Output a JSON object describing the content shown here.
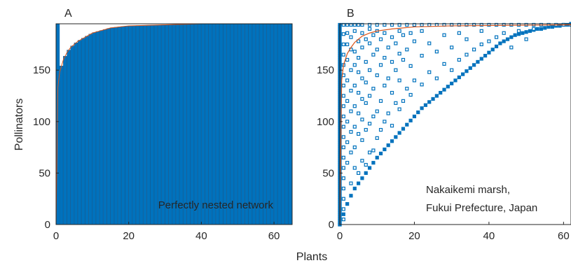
{
  "figure": {
    "shared_xlabel": "Plants",
    "shared_ylabel": "Pollinators",
    "colors": {
      "marker": "#0072bd",
      "curve": "#d95319",
      "axis": "#262626"
    }
  },
  "chart_data": [
    {
      "panel_label": "A",
      "type": "heatmap",
      "annotation": "Perfectly nested network",
      "xlabel": "Plants",
      "ylabel": "Pollinators",
      "xlim": [
        0,
        65
      ],
      "ylim": [
        0,
        195
      ],
      "xticks": [
        0,
        20,
        40,
        60
      ],
      "yticks": [
        0,
        50,
        100,
        150
      ],
      "grid": false,
      "matrix_rows": 195,
      "matrix_cols": 65,
      "nested_fill_boundary": {
        "x": [
          0,
          0.5,
          1,
          2,
          3,
          4,
          6,
          8,
          10,
          12,
          15,
          20,
          30,
          40,
          65
        ],
        "y": [
          0,
          133,
          148,
          160,
          167,
          172,
          178,
          182,
          186,
          188,
          191,
          193,
          194,
          195,
          195
        ]
      }
    },
    {
      "panel_label": "B",
      "type": "scatter",
      "annotation_lines": [
        "Nakaikemi marsh,",
        "Fukui Prefecture, Japan"
      ],
      "xlabel": "Plants",
      "ylabel": "Pollinators",
      "xlim": [
        0,
        62
      ],
      "ylim": [
        0,
        195
      ],
      "xticks": [
        0,
        20,
        40,
        60
      ],
      "yticks": [
        0,
        50,
        100,
        150
      ],
      "grid": false,
      "curve": {
        "x": [
          0,
          0.5,
          1,
          2,
          3,
          4,
          6,
          8,
          10,
          14,
          20,
          30,
          62
        ],
        "y": [
          0,
          140,
          155,
          166,
          172,
          177,
          183,
          186,
          188,
          190,
          192,
          193,
          194
        ]
      },
      "diagonal": [
        [
          0,
          0
        ],
        [
          1,
          10
        ],
        [
          2,
          20
        ],
        [
          3,
          28
        ],
        [
          4,
          35
        ],
        [
          5,
          40
        ],
        [
          6,
          45
        ],
        [
          7,
          50
        ],
        [
          8,
          55
        ],
        [
          9,
          60
        ],
        [
          10,
          65
        ],
        [
          11,
          69
        ],
        [
          12,
          73
        ],
        [
          13,
          77
        ],
        [
          14,
          81
        ],
        [
          15,
          85
        ],
        [
          16,
          89
        ],
        [
          17,
          93
        ],
        [
          18,
          97
        ],
        [
          19,
          101
        ],
        [
          20,
          105
        ],
        [
          21,
          109
        ],
        [
          22,
          113
        ],
        [
          23,
          116
        ],
        [
          24,
          119
        ],
        [
          25,
          122
        ],
        [
          26,
          125
        ],
        [
          27,
          128
        ],
        [
          28,
          131
        ],
        [
          29,
          134
        ],
        [
          30,
          137
        ],
        [
          31,
          140
        ],
        [
          32,
          143
        ],
        [
          33,
          146
        ],
        [
          34,
          149
        ],
        [
          35,
          152
        ],
        [
          36,
          155
        ],
        [
          37,
          158
        ],
        [
          38,
          161
        ],
        [
          39,
          164
        ],
        [
          40,
          167
        ],
        [
          41,
          170
        ],
        [
          42,
          173
        ],
        [
          43,
          176
        ],
        [
          44,
          178
        ],
        [
          45,
          180
        ],
        [
          46,
          182
        ],
        [
          47,
          184
        ],
        [
          48,
          185
        ],
        [
          49,
          186
        ],
        [
          50,
          187
        ],
        [
          51,
          188
        ],
        [
          52,
          189
        ],
        [
          53,
          190
        ],
        [
          54,
          190
        ],
        [
          55,
          191
        ],
        [
          56,
          192
        ],
        [
          57,
          192
        ],
        [
          58,
          193
        ],
        [
          59,
          193
        ],
        [
          60,
          194
        ],
        [
          61,
          194
        ],
        [
          62,
          195
        ]
      ],
      "top_band": [
        [
          1,
          194
        ],
        [
          2,
          194
        ],
        [
          3,
          194
        ],
        [
          4,
          194
        ],
        [
          5,
          194
        ],
        [
          6,
          194
        ],
        [
          8,
          194
        ],
        [
          10,
          194
        ],
        [
          12,
          194
        ],
        [
          14,
          194
        ],
        [
          16,
          194
        ],
        [
          18,
          194
        ],
        [
          20,
          194
        ],
        [
          22,
          194
        ],
        [
          24,
          194
        ],
        [
          26,
          194
        ],
        [
          28,
          194
        ],
        [
          30,
          194
        ],
        [
          32,
          194
        ],
        [
          34,
          194
        ],
        [
          36,
          194
        ],
        [
          38,
          194
        ],
        [
          40,
          194
        ],
        [
          42,
          194
        ],
        [
          44,
          194
        ],
        [
          46,
          194
        ],
        [
          48,
          194
        ],
        [
          50,
          194
        ],
        [
          52,
          194
        ],
        [
          54,
          194
        ],
        [
          56,
          194
        ],
        [
          58,
          194
        ],
        [
          60,
          194
        ],
        [
          62,
          194
        ]
      ],
      "scatter_extra": [
        [
          1,
          5
        ],
        [
          1,
          15
        ],
        [
          1,
          25
        ],
        [
          1,
          35
        ],
        [
          1,
          45
        ],
        [
          1,
          55
        ],
        [
          1,
          65
        ],
        [
          1,
          75
        ],
        [
          1,
          85
        ],
        [
          1,
          95
        ],
        [
          1,
          105
        ],
        [
          1,
          115
        ],
        [
          1,
          125
        ],
        [
          1,
          135
        ],
        [
          1,
          145
        ],
        [
          1,
          155
        ],
        [
          1,
          165
        ],
        [
          1,
          175
        ],
        [
          1,
          185
        ],
        [
          2,
          60
        ],
        [
          2,
          80
        ],
        [
          2,
          100
        ],
        [
          2,
          120
        ],
        [
          2,
          140
        ],
        [
          2,
          160
        ],
        [
          2,
          175
        ],
        [
          2,
          186
        ],
        [
          3,
          40
        ],
        [
          3,
          70
        ],
        [
          3,
          90
        ],
        [
          3,
          110
        ],
        [
          3,
          130
        ],
        [
          3,
          150
        ],
        [
          3,
          170
        ],
        [
          3,
          182
        ],
        [
          4,
          55
        ],
        [
          4,
          75
        ],
        [
          4,
          95
        ],
        [
          4,
          115
        ],
        [
          4,
          135
        ],
        [
          4,
          155
        ],
        [
          4,
          168
        ],
        [
          4,
          188
        ],
        [
          5,
          50
        ],
        [
          5,
          88
        ],
        [
          5,
          108
        ],
        [
          5,
          128
        ],
        [
          5,
          148
        ],
        [
          5,
          162
        ],
        [
          5,
          178
        ],
        [
          6,
          62
        ],
        [
          6,
          82
        ],
        [
          6,
          102
        ],
        [
          6,
          122
        ],
        [
          6,
          142
        ],
        [
          6,
          172
        ],
        [
          6,
          186
        ],
        [
          7,
          58
        ],
        [
          7,
          92
        ],
        [
          7,
          118
        ],
        [
          7,
          138
        ],
        [
          7,
          158
        ],
        [
          7,
          180
        ],
        [
          8,
          70
        ],
        [
          8,
          98
        ],
        [
          8,
          125
        ],
        [
          8,
          150
        ],
        [
          8,
          176
        ],
        [
          8,
          190
        ],
        [
          9,
          72
        ],
        [
          9,
          105
        ],
        [
          9,
          132
        ],
        [
          9,
          165
        ],
        [
          9,
          184
        ],
        [
          10,
          84
        ],
        [
          10,
          110
        ],
        [
          10,
          145
        ],
        [
          10,
          170
        ],
        [
          10,
          188
        ],
        [
          11,
          92
        ],
        [
          11,
          120
        ],
        [
          11,
          155
        ],
        [
          11,
          180
        ],
        [
          12,
          100
        ],
        [
          12,
          135
        ],
        [
          12,
          162
        ],
        [
          12,
          186
        ],
        [
          13,
          108
        ],
        [
          13,
          142
        ],
        [
          13,
          172
        ],
        [
          14,
          96
        ],
        [
          14,
          128
        ],
        [
          14,
          158
        ],
        [
          14,
          182
        ],
        [
          15,
          118
        ],
        [
          15,
          150
        ],
        [
          15,
          176
        ],
        [
          16,
          112
        ],
        [
          16,
          140
        ],
        [
          16,
          166
        ],
        [
          16,
          188
        ],
        [
          17,
          120
        ],
        [
          17,
          160
        ],
        [
          17,
          184
        ],
        [
          18,
          132
        ],
        [
          18,
          170
        ],
        [
          19,
          126
        ],
        [
          19,
          154
        ],
        [
          19,
          186
        ],
        [
          20,
          140
        ],
        [
          20,
          178
        ],
        [
          22,
          136
        ],
        [
          22,
          164
        ],
        [
          22,
          188
        ],
        [
          24,
          148
        ],
        [
          24,
          176
        ],
        [
          26,
          142
        ],
        [
          26,
          168
        ],
        [
          28,
          156
        ],
        [
          28,
          184
        ],
        [
          30,
          150
        ],
        [
          30,
          172
        ],
        [
          32,
          160
        ],
        [
          32,
          186
        ],
        [
          34,
          165
        ],
        [
          34,
          180
        ],
        [
          36,
          170
        ],
        [
          38,
          175
        ],
        [
          38,
          188
        ],
        [
          40,
          178
        ],
        [
          42,
          182
        ],
        [
          44,
          186
        ],
        [
          46,
          172
        ],
        [
          48,
          188
        ],
        [
          50,
          180
        ],
        [
          52,
          190
        ]
      ],
      "annotations_text": "Nakaikemi marsh, Fukui Prefecture, Japan"
    }
  ]
}
